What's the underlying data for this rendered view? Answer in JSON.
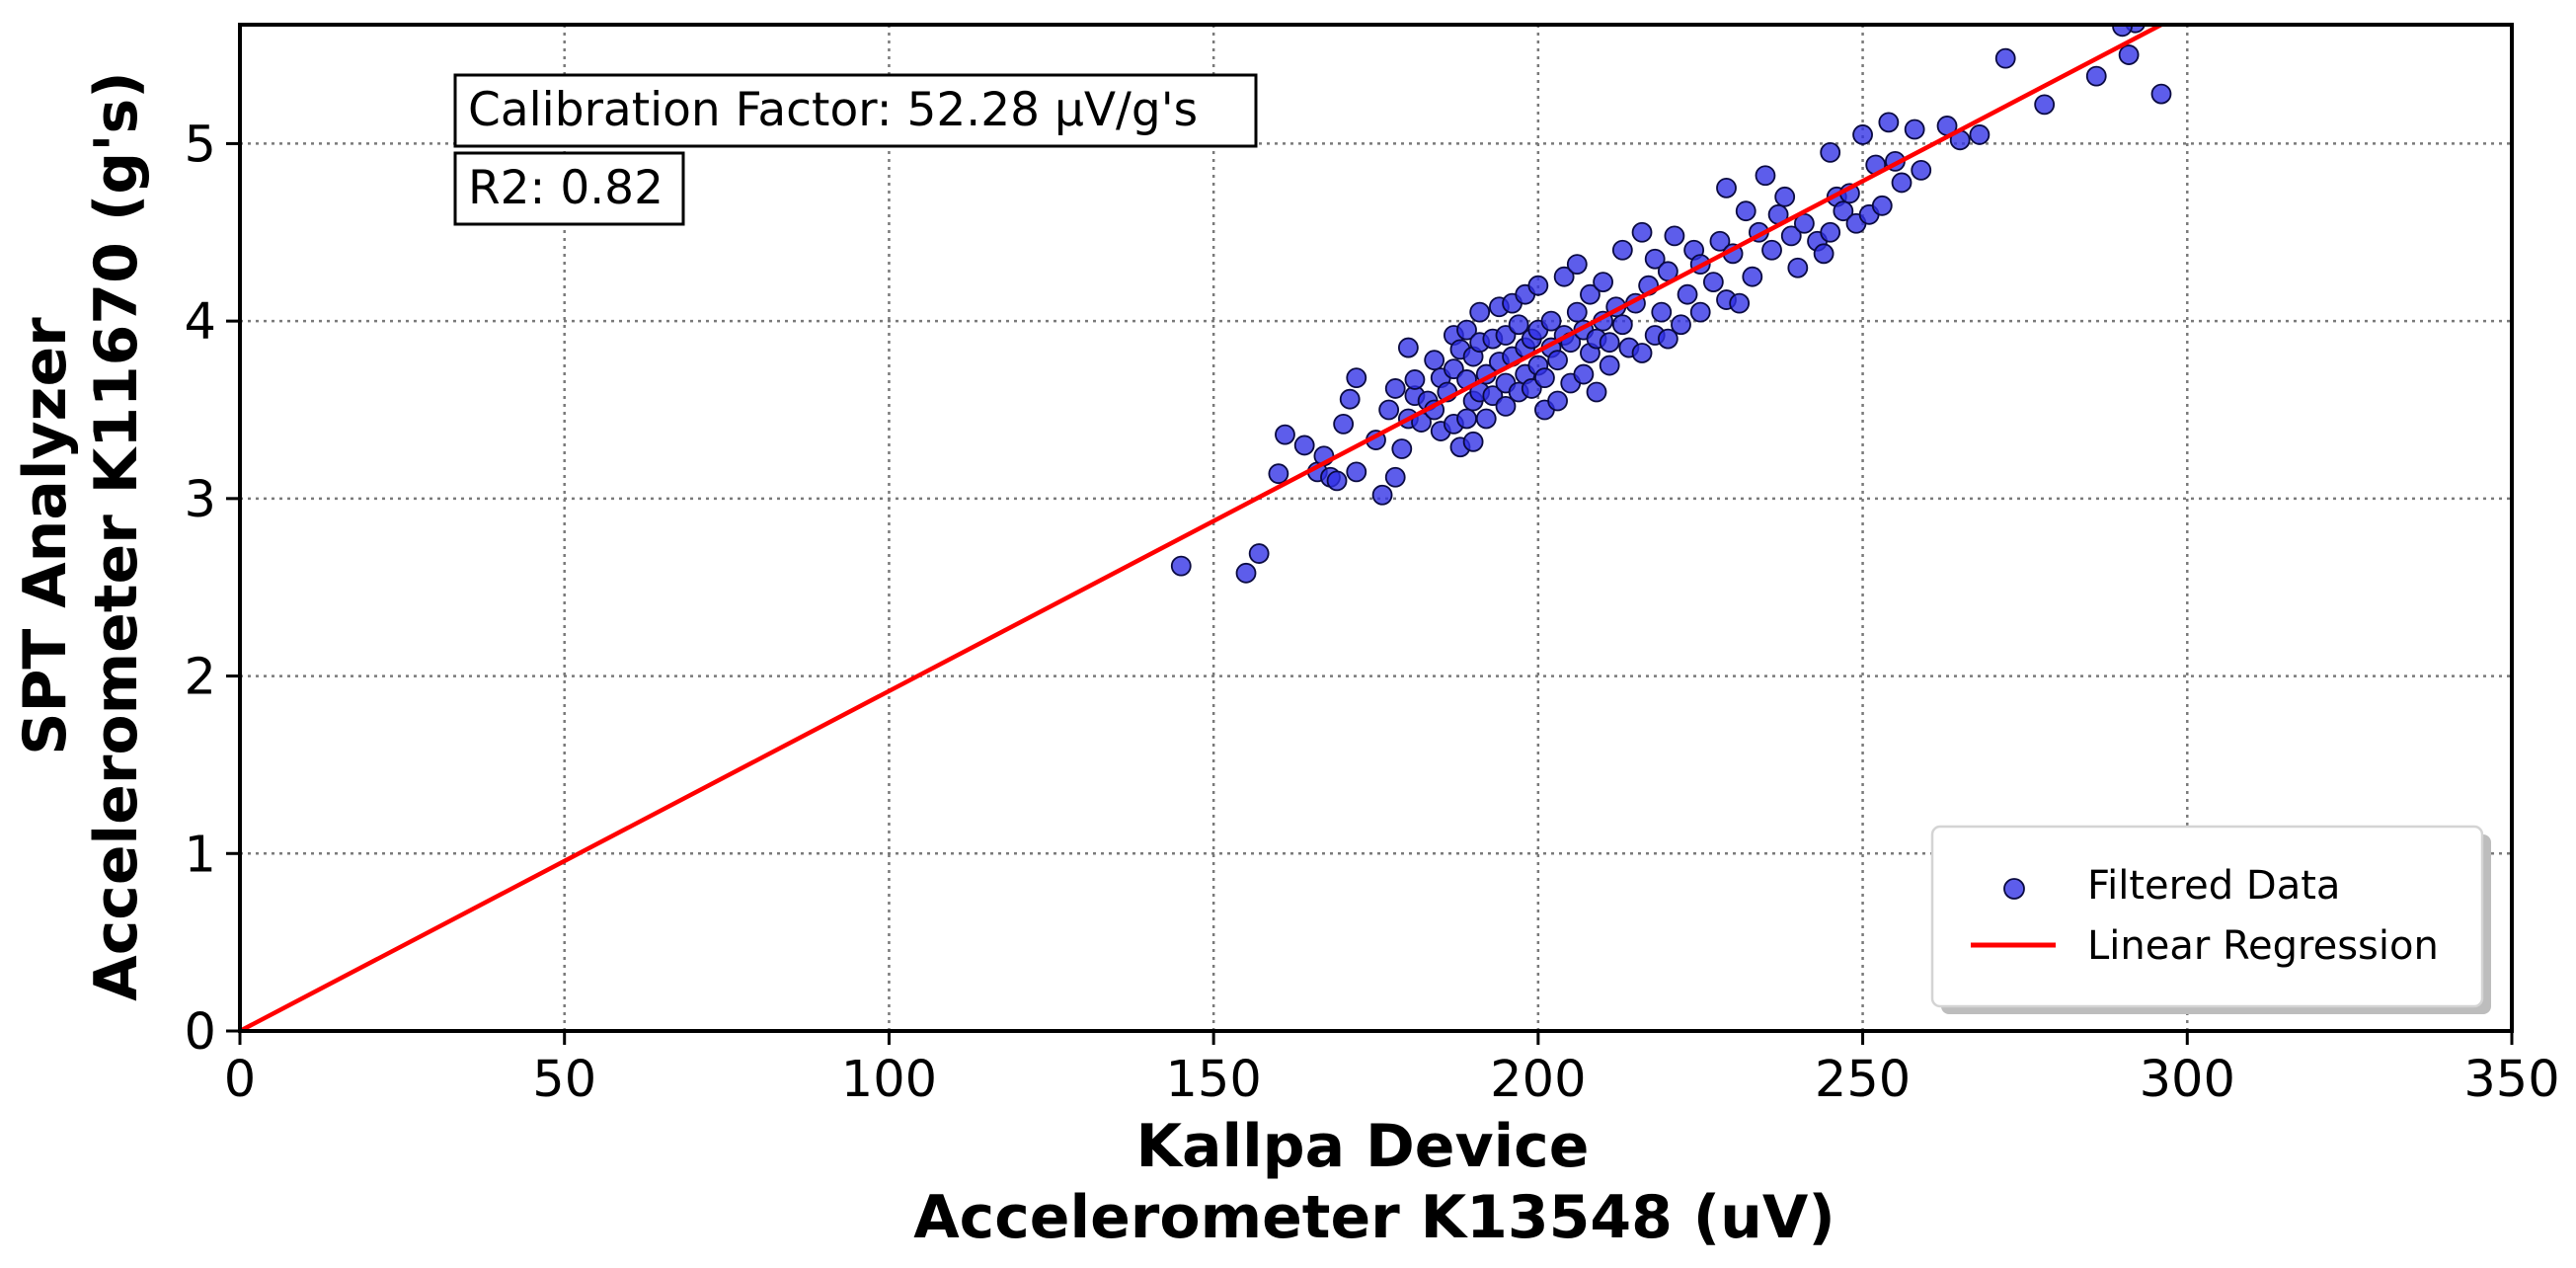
{
  "chart_data": {
    "type": "scatter",
    "xlabel": [
      "Kallpa Device",
      "Accelerometer K13548 (uV)"
    ],
    "ylabel": [
      "SPT Analyzer",
      "Accelerometer K11670 (g's)"
    ],
    "xlim": [
      0,
      350
    ],
    "ylim": [
      0,
      5.67
    ],
    "xticks": [
      "0",
      "50",
      "100",
      "150",
      "200",
      "250",
      "300",
      "350"
    ],
    "xtick_values": [
      0,
      50,
      100,
      150,
      200,
      250,
      300,
      350
    ],
    "yticks": [
      "0",
      "1",
      "2",
      "3",
      "4",
      "5"
    ],
    "ytick_values": [
      0,
      1,
      2,
      3,
      4,
      5
    ],
    "grid": true,
    "annotations": [
      "Calibration Factor: 52.28 µV/g's",
      "R2: 0.82"
    ],
    "legend_position": "lower-right",
    "series": [
      {
        "name": "Filtered Data",
        "kind": "scatter",
        "color": "#2f2fe6",
        "edge_color": "#0a0a40",
        "x": [
          145,
          155,
          157,
          160,
          161,
          164,
          166,
          167,
          168,
          169,
          170,
          171,
          172,
          172,
          175,
          176,
          177,
          178,
          178,
          179,
          180,
          180,
          181,
          181,
          182,
          183,
          184,
          184,
          185,
          185,
          186,
          187,
          187,
          187,
          188,
          188,
          189,
          189,
          189,
          190,
          190,
          190,
          191,
          191,
          191,
          192,
          192,
          193,
          193,
          194,
          194,
          195,
          195,
          195,
          196,
          196,
          197,
          197,
          198,
          198,
          198,
          199,
          199,
          200,
          200,
          200,
          201,
          201,
          202,
          202,
          203,
          203,
          204,
          204,
          205,
          205,
          206,
          206,
          207,
          207,
          208,
          208,
          209,
          209,
          210,
          210,
          211,
          211,
          212,
          213,
          213,
          214,
          215,
          216,
          216,
          217,
          218,
          218,
          219,
          220,
          220,
          221,
          222,
          223,
          224,
          225,
          225,
          227,
          228,
          229,
          229,
          230,
          231,
          232,
          233,
          234,
          235,
          236,
          237,
          238,
          239,
          240,
          241,
          243,
          244,
          245,
          245,
          246,
          247,
          248,
          249,
          250,
          251,
          252,
          253,
          254,
          255,
          256,
          258,
          259,
          263,
          265,
          268,
          272,
          278,
          286,
          291,
          292,
          296,
          290
        ],
        "y": [
          2.62,
          2.58,
          2.69,
          3.14,
          3.36,
          3.3,
          3.15,
          3.24,
          3.12,
          3.1,
          3.42,
          3.56,
          3.68,
          3.15,
          3.33,
          3.02,
          3.5,
          3.12,
          3.62,
          3.28,
          3.45,
          3.85,
          3.58,
          3.67,
          3.43,
          3.55,
          3.5,
          3.78,
          3.38,
          3.68,
          3.6,
          3.42,
          3.73,
          3.92,
          3.29,
          3.84,
          3.45,
          3.67,
          3.95,
          3.32,
          3.55,
          3.8,
          3.6,
          3.88,
          4.05,
          3.45,
          3.7,
          3.58,
          3.9,
          3.77,
          4.08,
          3.52,
          3.65,
          3.92,
          3.8,
          4.1,
          3.6,
          3.98,
          3.7,
          3.85,
          4.15,
          3.62,
          3.9,
          3.75,
          3.95,
          4.2,
          3.5,
          3.68,
          3.85,
          4.0,
          3.55,
          3.78,
          3.92,
          4.25,
          3.65,
          3.88,
          4.05,
          4.32,
          3.7,
          3.95,
          3.82,
          4.15,
          3.6,
          3.9,
          4.0,
          4.22,
          3.75,
          3.88,
          4.08,
          3.98,
          4.4,
          3.85,
          4.1,
          3.82,
          4.5,
          4.2,
          3.92,
          4.35,
          4.05,
          3.9,
          4.28,
          4.48,
          3.98,
          4.15,
          4.4,
          4.05,
          4.32,
          4.22,
          4.45,
          4.12,
          4.75,
          4.38,
          4.1,
          4.62,
          4.25,
          4.5,
          4.82,
          4.4,
          4.6,
          4.7,
          4.48,
          4.3,
          4.55,
          4.45,
          4.38,
          4.95,
          4.5,
          4.7,
          4.62,
          4.72,
          4.55,
          5.05,
          4.6,
          4.88,
          4.65,
          5.12,
          4.9,
          4.78,
          5.08,
          4.85,
          5.1,
          5.02,
          5.05,
          5.48,
          5.22,
          5.38,
          5.5,
          5.68,
          5.28,
          5.66
        ]
      },
      {
        "name": "Linear Regression",
        "kind": "line",
        "color": "#ff0000",
        "x": [
          0,
          296
        ],
        "y": [
          0,
          5.67
        ]
      }
    ]
  }
}
